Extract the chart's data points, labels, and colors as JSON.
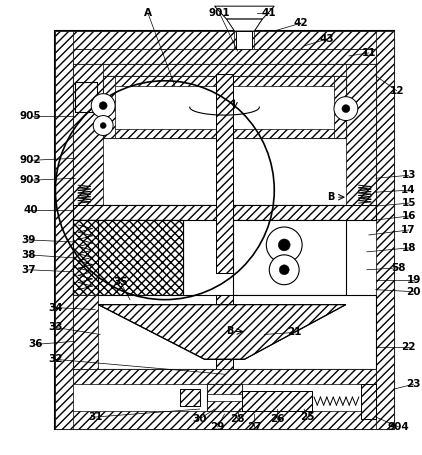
{
  "bg_color": "#ffffff",
  "lc": "#000000",
  "fig_width": 4.22,
  "fig_height": 4.55,
  "dpi": 100,
  "xlim": [
    0,
    422
  ],
  "ylim": [
    0,
    455
  ]
}
